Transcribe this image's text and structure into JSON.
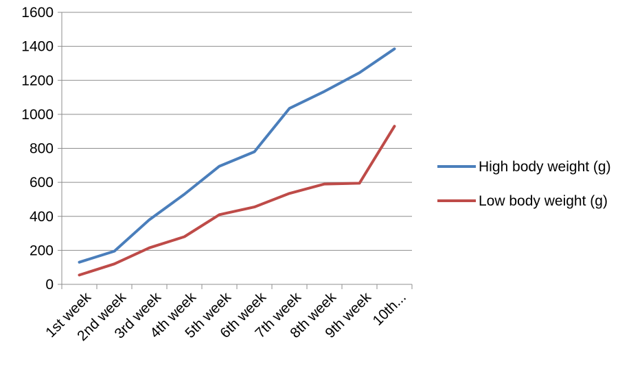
{
  "chart_data": {
    "type": "line",
    "title": "",
    "xlabel": "",
    "ylabel": "",
    "categories": [
      "1st week",
      "2nd week",
      "3rd week",
      "4th week",
      "5th week",
      "6th week",
      "7th  week",
      "8th week",
      "9th week",
      "10th..."
    ],
    "y_ticks": [
      "0",
      "200",
      "400",
      "600",
      "800",
      "1000",
      "1200",
      "1400",
      "1600"
    ],
    "ylim": [
      0,
      1600
    ],
    "grid": true,
    "legend_position": "right",
    "series": [
      {
        "name": "High body weight (g)",
        "color": "#4a7ebb",
        "values": [
          130,
          195,
          380,
          530,
          695,
          780,
          1035,
          1135,
          1245,
          1385
        ]
      },
      {
        "name": "Low body weight (g)",
        "color": "#be4b48",
        "values": [
          55,
          120,
          215,
          280,
          410,
          455,
          535,
          590,
          595,
          930
        ]
      }
    ]
  }
}
